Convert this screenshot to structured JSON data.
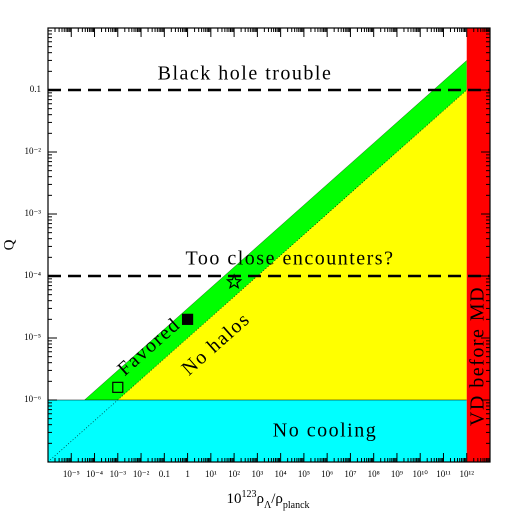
{
  "chart_data": {
    "type": "regions",
    "xlabel": [
      {
        "text": "10",
        "shift": "base"
      },
      {
        "text": "123",
        "shift": "super"
      },
      {
        "text": "ρ",
        "shift": "base"
      },
      {
        "text": "Λ",
        "shift": "sub"
      },
      {
        "text": "/ρ",
        "shift": "base"
      },
      {
        "text": "planck",
        "shift": "sub"
      }
    ],
    "ylabel": "Q",
    "xscale": "log",
    "yscale": "log",
    "xlim": [
      1e-06,
      10000000000000.0
    ],
    "ylim": [
      1e-07,
      1
    ],
    "xticks": [
      {
        "value": 1e-05,
        "label": "10⁻⁵"
      },
      {
        "value": 0.0001,
        "label": "10⁻⁴"
      },
      {
        "value": 0.001,
        "label": "10⁻³"
      },
      {
        "value": 0.01,
        "label": "10⁻²"
      },
      0.1,
      1,
      {
        "value": 10,
        "label": "10¹"
      },
      {
        "value": 100,
        "label": "10²"
      },
      {
        "value": 1000,
        "label": "10³"
      },
      {
        "value": 10000.0,
        "label": "10⁴"
      },
      {
        "value": 100000.0,
        "label": "10⁵"
      },
      {
        "value": 1000000.0,
        "label": "10⁶"
      },
      {
        "value": 10000000.0,
        "label": "10⁷"
      },
      {
        "value": 100000000.0,
        "label": "10⁸"
      },
      {
        "value": 1000000000.0,
        "label": "10⁹"
      },
      {
        "value": 10000000000.0,
        "label": "10¹⁰"
      },
      {
        "value": 100000000000.0,
        "label": "10¹¹"
      },
      {
        "value": 1000000000000.0,
        "label": "10¹²"
      }
    ],
    "yticks": [
      {
        "value": 1e-06,
        "label": "10⁻⁶"
      },
      {
        "value": 1e-05,
        "label": "10⁻⁵"
      },
      {
        "value": 0.0001,
        "label": "10⁻⁴"
      },
      {
        "value": 0.001,
        "label": "10⁻³"
      },
      {
        "value": 0.01,
        "label": "10⁻²"
      },
      0.1
    ],
    "cooling_limit": 1e-06,
    "vd_limit": 1000000000000.0,
    "dashed_lines": [
      0.1,
      0.0001
    ],
    "favored_band": {
      "lower": {
        "x": [
          1e-06,
          1000000000000.0
        ],
        "y": [
          1e-07,
          0.1
        ]
      },
      "upper": {
        "x": [
          3.7e-05,
          1000000000000.0
        ],
        "y": [
          1e-06,
          0.3
        ]
      }
    },
    "colors": {
      "cooling": "#00ffff",
      "vd": "#ff0000",
      "favored": "#00ff00",
      "halos": "#ffff00"
    },
    "markers": [
      {
        "x": 0.001,
        "y": 1.6e-06,
        "marker": "open-square"
      },
      {
        "x": 1,
        "y": 2e-05,
        "marker": "filled-square"
      },
      {
        "x": 100,
        "y": 8e-05,
        "marker": "star"
      }
    ],
    "annotations": [
      "Black hole trouble",
      "Too close encounters?",
      "Favored",
      "No halos",
      "No cooling",
      "VD before MD"
    ]
  }
}
